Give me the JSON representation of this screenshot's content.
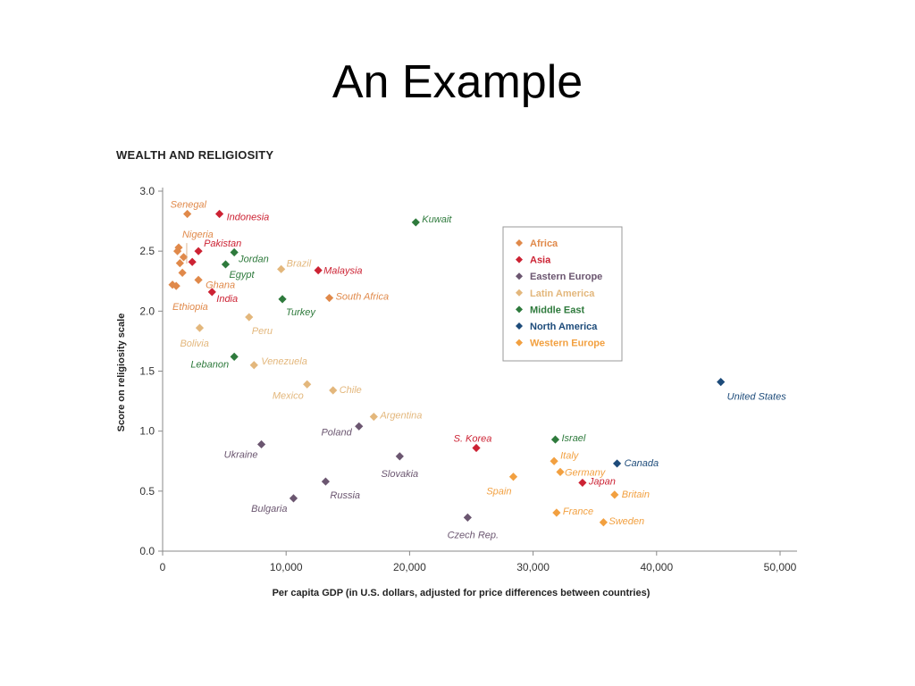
{
  "slide": {
    "title": "An Example"
  },
  "chart_data": {
    "type": "scatter",
    "title": "WEALTH AND RELIGIOSITY",
    "xlabel": "Per capita GDP (in U.S. dollars, adjusted for price differences between countries)",
    "ylabel": "Score on religiosity scale",
    "xlim": [
      0,
      50000
    ],
    "ylim": [
      0,
      3.0
    ],
    "x_ticks": [
      {
        "value": 0,
        "label": "0"
      },
      {
        "value": 10000,
        "label": "10,000"
      },
      {
        "value": 20000,
        "label": "20,000"
      },
      {
        "value": 30000,
        "label": "30,000"
      },
      {
        "value": 40000,
        "label": "40,000"
      },
      {
        "value": 50000,
        "label": "50,000"
      }
    ],
    "y_ticks": [
      {
        "value": 0,
        "label": "0.0"
      },
      {
        "value": 0.5,
        "label": "0.5"
      },
      {
        "value": 1.0,
        "label": "1.0"
      },
      {
        "value": 1.5,
        "label": "1.5"
      },
      {
        "value": 2.0,
        "label": "2.0"
      },
      {
        "value": 2.5,
        "label": "2.5"
      },
      {
        "value": 3.0,
        "label": "3.0"
      }
    ],
    "grid": false,
    "legend_position": "top-right",
    "series": [
      {
        "name": "Africa",
        "color": "#e0894a",
        "points": [
          {
            "label": "Senegal",
            "x": 2000,
            "y": 2.81
          },
          {
            "label": "Nigeria",
            "x": 1300,
            "y": 2.53
          },
          {
            "label": "",
            "x": 1200,
            "y": 2.5
          },
          {
            "label": "",
            "x": 1700,
            "y": 2.45
          },
          {
            "label": "",
            "x": 1400,
            "y": 2.4
          },
          {
            "label": "",
            "x": 1600,
            "y": 2.32
          },
          {
            "label": "Ghana",
            "x": 2900,
            "y": 2.26
          },
          {
            "label": "Ethiopia",
            "x": 800,
            "y": 2.22
          },
          {
            "label": "",
            "x": 1100,
            "y": 2.21
          },
          {
            "label": "South Africa",
            "x": 13500,
            "y": 2.11
          }
        ]
      },
      {
        "name": "Asia",
        "color": "#cc2233",
        "points": [
          {
            "label": "Indonesia",
            "x": 4600,
            "y": 2.81
          },
          {
            "label": "Pakistan",
            "x": 2900,
            "y": 2.5
          },
          {
            "label": "",
            "x": 2400,
            "y": 2.41
          },
          {
            "label": "India",
            "x": 4000,
            "y": 2.16
          },
          {
            "label": "Malaysia",
            "x": 12600,
            "y": 2.34
          },
          {
            "label": "S. Korea",
            "x": 25400,
            "y": 0.86
          },
          {
            "label": "Japan",
            "x": 34000,
            "y": 0.57
          }
        ]
      },
      {
        "name": "Eastern Europe",
        "color": "#6b5670",
        "points": [
          {
            "label": "Poland",
            "x": 15900,
            "y": 1.04
          },
          {
            "label": "Ukraine",
            "x": 8000,
            "y": 0.89
          },
          {
            "label": "Slovakia",
            "x": 19200,
            "y": 0.79
          },
          {
            "label": "Russia",
            "x": 13200,
            "y": 0.58
          },
          {
            "label": "Bulgaria",
            "x": 10600,
            "y": 0.44
          },
          {
            "label": "Czech Rep.",
            "x": 24700,
            "y": 0.28
          }
        ]
      },
      {
        "name": "Latin America",
        "color": "#e3b77c",
        "points": [
          {
            "label": "Brazil",
            "x": 9600,
            "y": 2.35
          },
          {
            "label": "Peru",
            "x": 7000,
            "y": 1.95
          },
          {
            "label": "Bolivia",
            "x": 3000,
            "y": 1.86
          },
          {
            "label": "Venezuela",
            "x": 7400,
            "y": 1.55
          },
          {
            "label": "Mexico",
            "x": 11700,
            "y": 1.39
          },
          {
            "label": "Chile",
            "x": 13800,
            "y": 1.34
          },
          {
            "label": "Argentina",
            "x": 17100,
            "y": 1.12
          }
        ]
      },
      {
        "name": "Middle East",
        "color": "#2e7a3c",
        "points": [
          {
            "label": "Kuwait",
            "x": 20500,
            "y": 2.74
          },
          {
            "label": "Jordan",
            "x": 5800,
            "y": 2.49
          },
          {
            "label": "Egypt",
            "x": 5100,
            "y": 2.39
          },
          {
            "label": "Turkey",
            "x": 9700,
            "y": 2.1
          },
          {
            "label": "Lebanon",
            "x": 5800,
            "y": 1.62
          },
          {
            "label": "Israel",
            "x": 31800,
            "y": 0.93
          }
        ]
      },
      {
        "name": "North America",
        "color": "#1d4b7a",
        "points": [
          {
            "label": "United States",
            "x": 45200,
            "y": 1.41
          },
          {
            "label": "Canada",
            "x": 36800,
            "y": 0.73
          }
        ]
      },
      {
        "name": "Western Europe",
        "color": "#f2a040",
        "points": [
          {
            "label": "Italy",
            "x": 31700,
            "y": 0.75
          },
          {
            "label": "Germany",
            "x": 32200,
            "y": 0.66
          },
          {
            "label": "Spain",
            "x": 28400,
            "y": 0.62
          },
          {
            "label": "Britain",
            "x": 36600,
            "y": 0.47
          },
          {
            "label": "France",
            "x": 31900,
            "y": 0.32
          },
          {
            "label": "Sweden",
            "x": 35700,
            "y": 0.24
          }
        ]
      }
    ]
  }
}
